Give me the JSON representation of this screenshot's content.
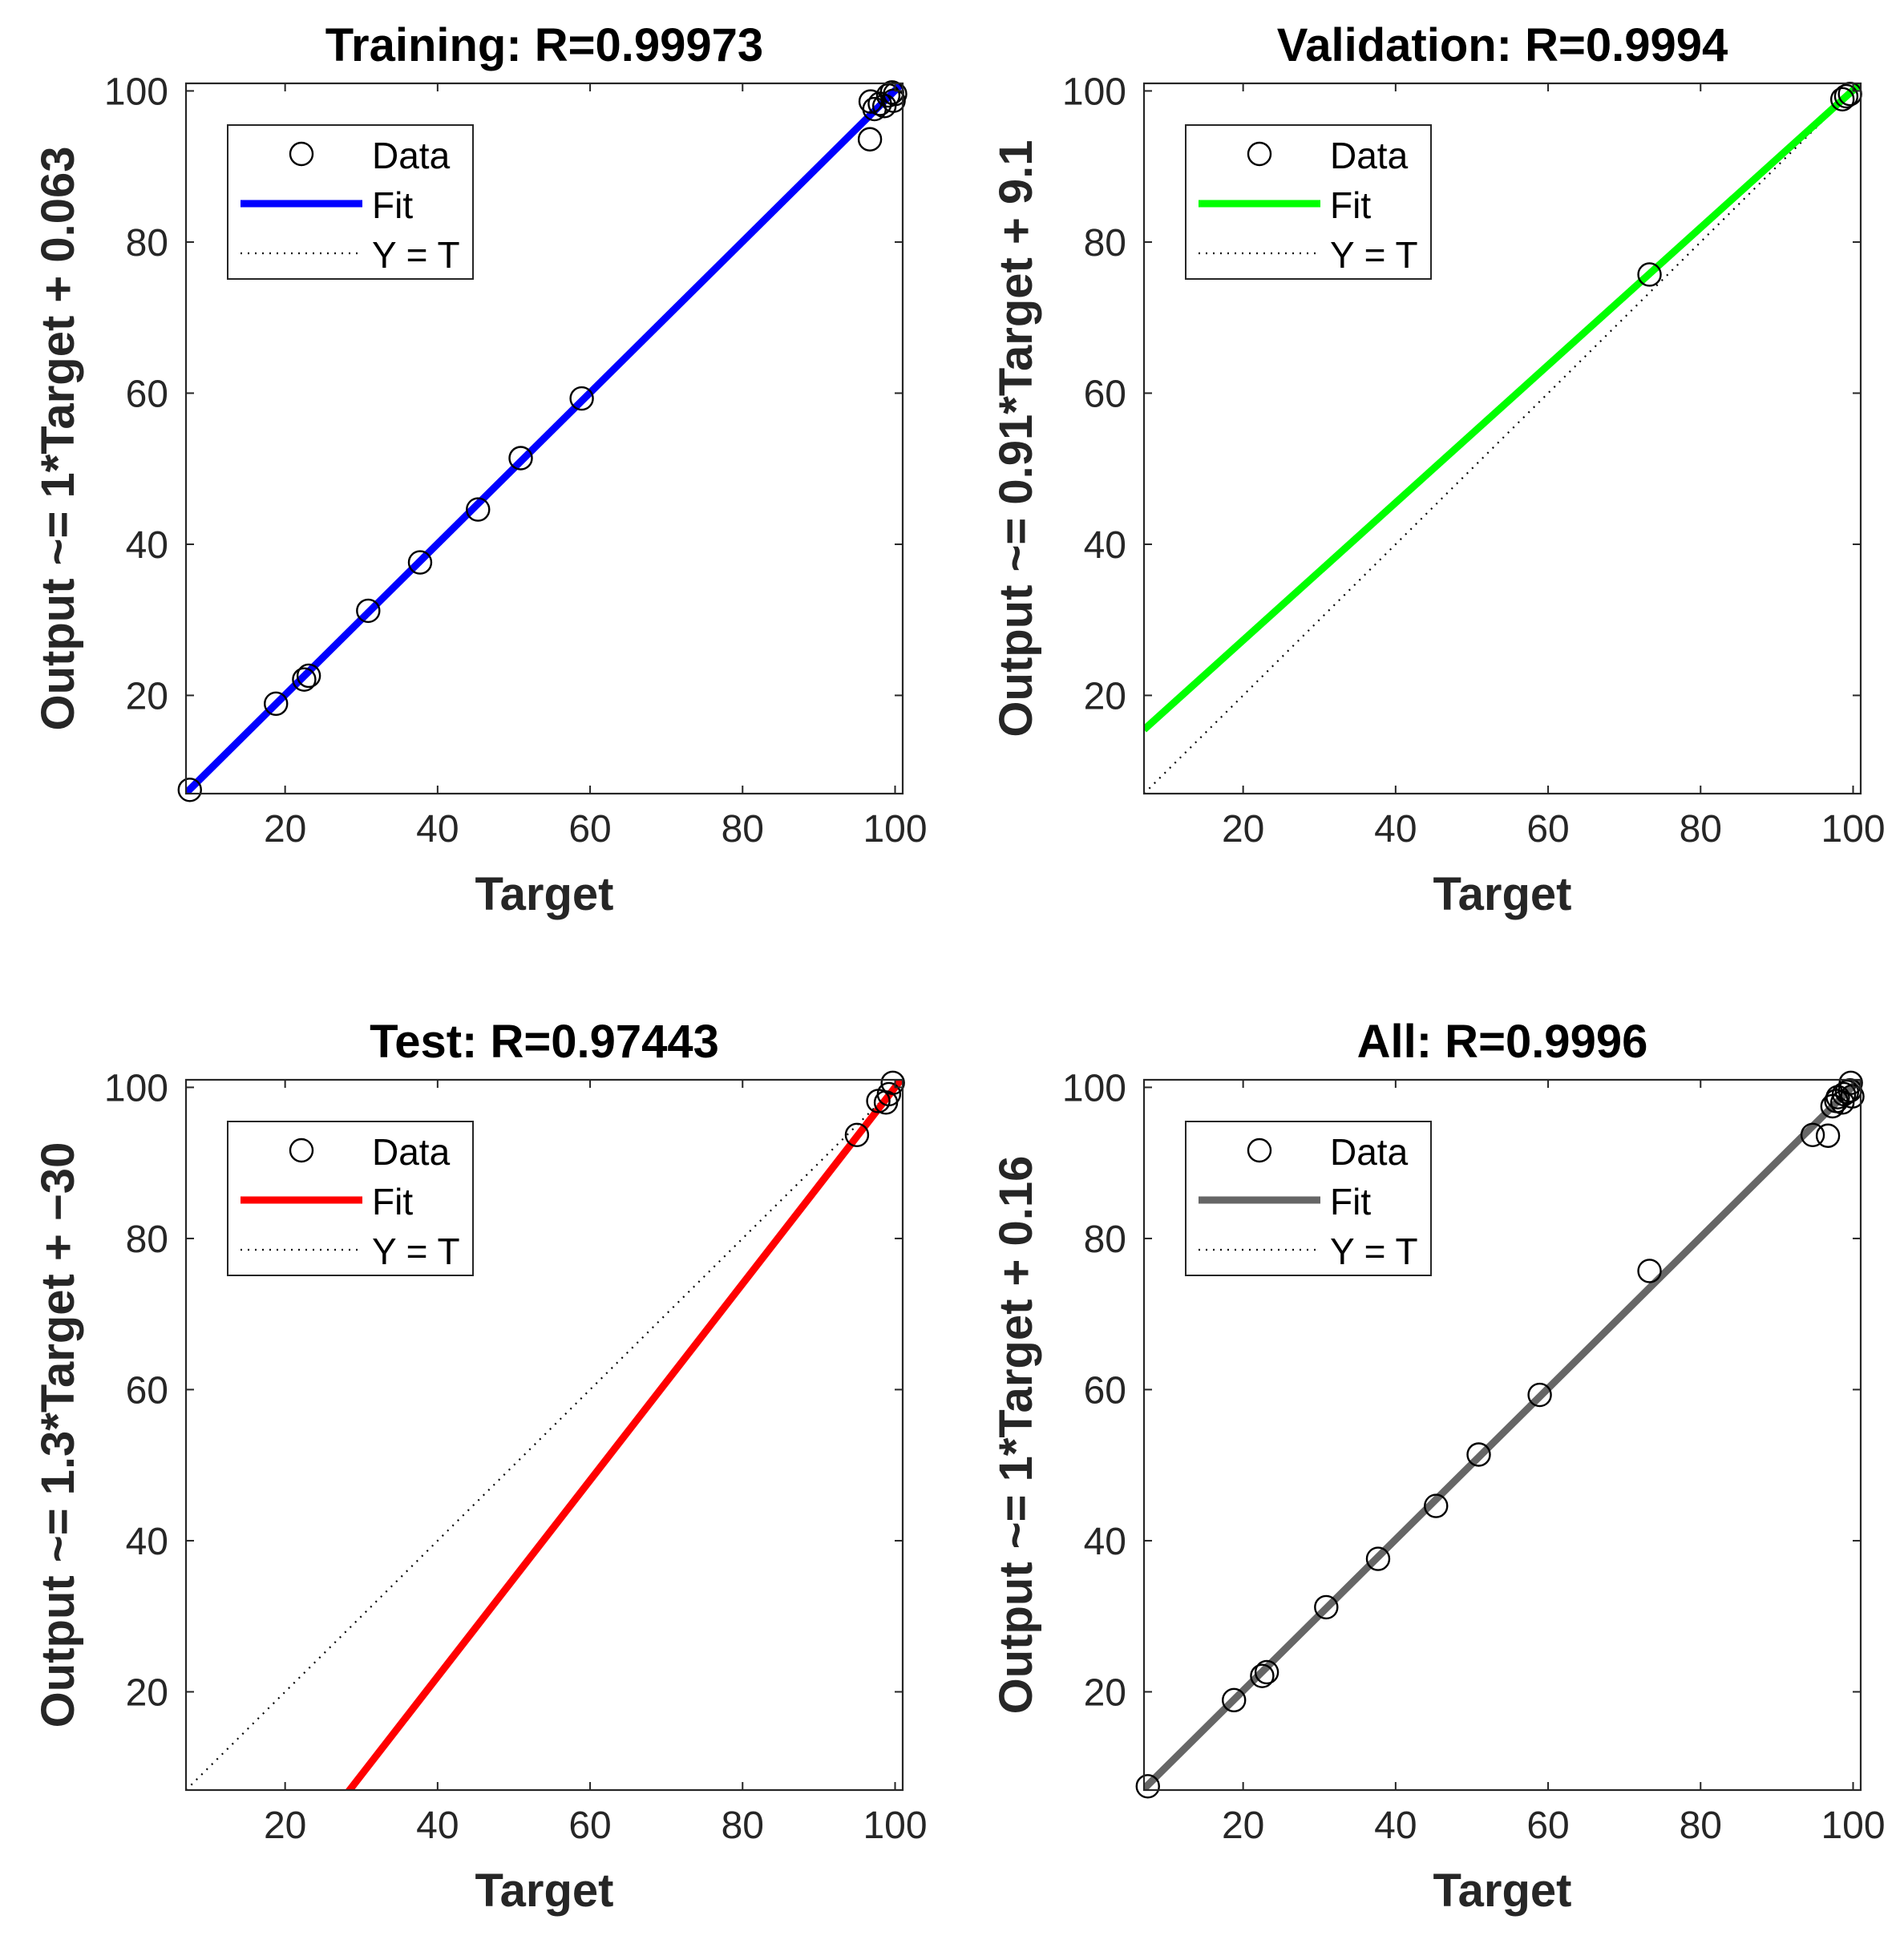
{
  "chart_data": [
    {
      "type": "scatter",
      "id": "training",
      "title": "Training: R=0.99973",
      "xlabel": "Target",
      "ylabel": "Output ~= 1*Target + 0.063",
      "xlim": [
        7,
        101
      ],
      "ylim": [
        7,
        101
      ],
      "xticks": [
        20,
        40,
        60,
        80,
        100
      ],
      "yticks": [
        20,
        40,
        60,
        80,
        100
      ],
      "fit_color": "#0000ff",
      "fit": {
        "slope": 1,
        "intercept": 0.063
      },
      "legend": {
        "position": "top-left",
        "entries": [
          "Data",
          "Fit",
          "Y = T"
        ]
      },
      "series": [
        {
          "name": "Data",
          "points": [
            [
              7.5,
              7.5
            ],
            [
              18.8,
              18.9
            ],
            [
              22.5,
              22.1
            ],
            [
              23.1,
              22.6
            ],
            [
              30.9,
              31.2
            ],
            [
              37.7,
              37.6
            ],
            [
              45.3,
              44.6
            ],
            [
              50.9,
              51.4
            ],
            [
              58.9,
              59.3
            ],
            [
              96.7,
              93.6
            ],
            [
              96.8,
              98.6
            ],
            [
              97.3,
              97.6
            ],
            [
              98.0,
              98.3
            ],
            [
              98.6,
              98.0
            ],
            [
              99.1,
              99.4
            ],
            [
              99.6,
              99.8
            ],
            [
              99.8,
              98.7
            ],
            [
              100.0,
              99.6
            ]
          ]
        }
      ]
    },
    {
      "type": "scatter",
      "id": "validation",
      "title": "Validation: R=0.9994",
      "xlabel": "Target",
      "ylabel": "Output ~= 0.91*Target + 9.1",
      "xlim": [
        7,
        101
      ],
      "ylim": [
        7,
        101
      ],
      "xticks": [
        20,
        40,
        60,
        80,
        100
      ],
      "yticks": [
        20,
        40,
        60,
        80,
        100
      ],
      "fit_color": "#00ff00",
      "fit": {
        "slope": 0.91,
        "intercept": 9.1
      },
      "legend": {
        "position": "top-left",
        "entries": [
          "Data",
          "Fit",
          "Y = T"
        ]
      },
      "series": [
        {
          "name": "Data",
          "points": [
            [
              73.3,
              75.7
            ],
            [
              98.6,
              98.9
            ],
            [
              99.1,
              99.3
            ],
            [
              99.6,
              99.6
            ]
          ]
        }
      ]
    },
    {
      "type": "scatter",
      "id": "test",
      "title": "Test: R=0.97443",
      "xlabel": "Target",
      "ylabel": "Output ~= 1.3*Target + −30",
      "xlim": [
        7,
        101
      ],
      "ylim": [
        7,
        101
      ],
      "xticks": [
        20,
        40,
        60,
        80,
        100
      ],
      "yticks": [
        20,
        40,
        60,
        80,
        100
      ],
      "fit_color": "#ff0000",
      "fit": {
        "slope": 1.3,
        "intercept": -30
      },
      "legend": {
        "position": "top-left",
        "entries": [
          "Data",
          "Fit",
          "Y = T"
        ]
      },
      "series": [
        {
          "name": "Data",
          "points": [
            [
              95.0,
              93.7
            ],
            [
              97.8,
              98.2
            ],
            [
              98.8,
              98.0
            ],
            [
              99.2,
              99.1
            ],
            [
              99.7,
              100.6
            ]
          ]
        }
      ]
    },
    {
      "type": "scatter",
      "id": "all",
      "title": "All: R=0.9996",
      "xlabel": "Target",
      "ylabel": "Output ~= 1*Target + 0.16",
      "xlim": [
        7,
        101
      ],
      "ylim": [
        7,
        101
      ],
      "xticks": [
        20,
        40,
        60,
        80,
        100
      ],
      "yticks": [
        20,
        40,
        60,
        80,
        100
      ],
      "fit_color": "#666666",
      "fit": {
        "slope": 1,
        "intercept": 0.16
      },
      "legend": {
        "position": "top-left",
        "entries": [
          "Data",
          "Fit",
          "Y = T"
        ]
      },
      "series": [
        {
          "name": "Data",
          "points": [
            [
              7.5,
              7.5
            ],
            [
              18.8,
              18.9
            ],
            [
              22.5,
              22.1
            ],
            [
              23.1,
              22.6
            ],
            [
              30.9,
              31.2
            ],
            [
              37.7,
              37.6
            ],
            [
              45.3,
              44.6
            ],
            [
              50.9,
              51.4
            ],
            [
              58.9,
              59.3
            ],
            [
              73.3,
              75.7
            ],
            [
              94.7,
              93.7
            ],
            [
              96.7,
              93.6
            ],
            [
              97.3,
              97.5
            ],
            [
              97.8,
              98.2
            ],
            [
              98.0,
              98.7
            ],
            [
              98.6,
              98.0
            ],
            [
              98.8,
              99.1
            ],
            [
              99.2,
              99.4
            ],
            [
              99.6,
              99.6
            ],
            [
              99.7,
              100.6
            ],
            [
              99.9,
              98.8
            ]
          ]
        }
      ]
    }
  ]
}
